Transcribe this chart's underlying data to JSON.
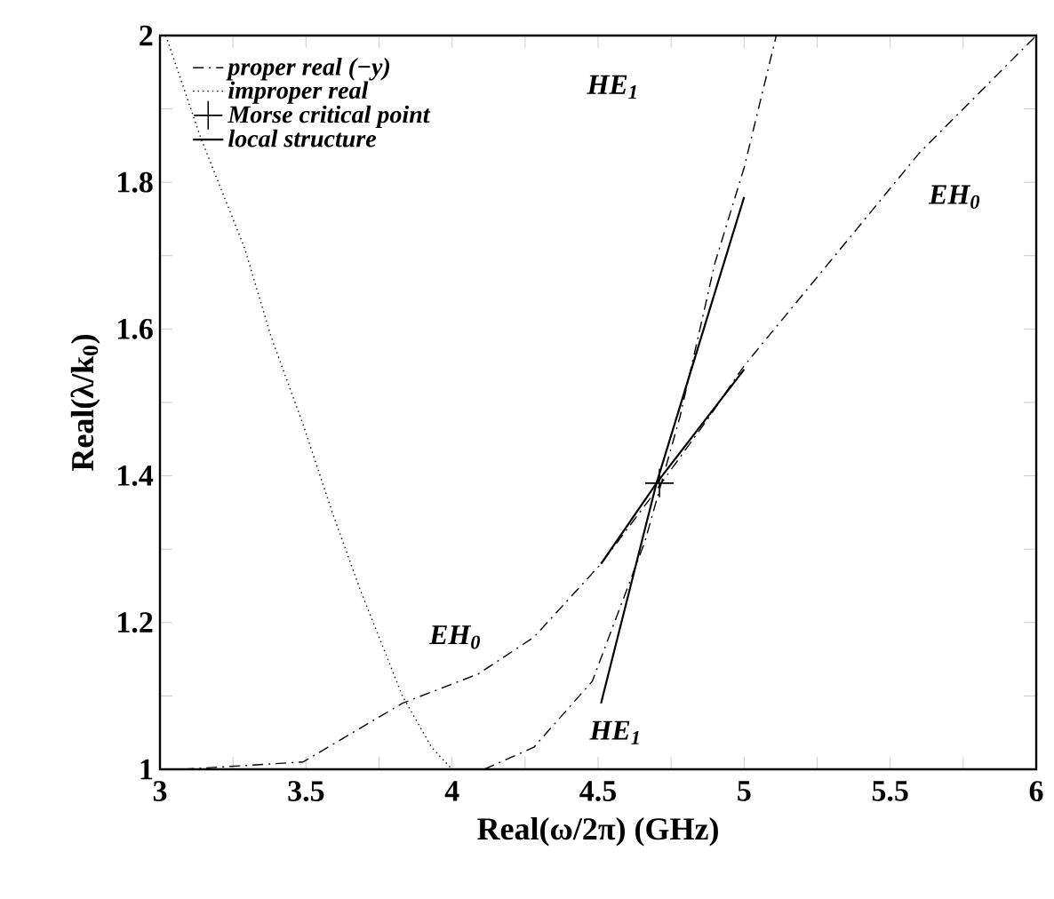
{
  "chart_data": {
    "type": "line",
    "xlabel": "Real(ω/2π) (GHz)",
    "ylabel": "Real(λ/k$_{0}$)",
    "xlim": [
      3,
      6
    ],
    "ylim": [
      1,
      2
    ],
    "xticks": [
      3,
      {
        "value": 3.25,
        "label": null
      },
      3.5,
      {
        "value": 3.75,
        "label": null
      },
      4,
      {
        "value": 4.25,
        "label": null
      },
      4.5,
      {
        "value": 4.75,
        "label": null
      },
      5,
      {
        "value": 5.25,
        "label": null
      },
      5.5,
      {
        "value": 5.75,
        "label": null
      },
      6
    ],
    "yticks": [
      1,
      {
        "value": 1.1,
        "label": null
      },
      1.2,
      {
        "value": 1.3,
        "label": null
      },
      1.4,
      {
        "value": 1.5,
        "label": null
      },
      1.6,
      {
        "value": 1.7,
        "label": null
      },
      1.8,
      {
        "value": 1.9,
        "label": null
      },
      2
    ],
    "legend": "top left",
    "series": [
      {
        "name": "proper real (−y)",
        "color": "#000000",
        "line_style": "dashdot",
        "x": [
          3.08,
          3.49,
          3.83,
          4.09,
          4.28,
          4.51,
          4.68,
          4.88,
          5.0,
          5.29,
          5.6,
          6.0
        ],
        "values": [
          1.0,
          1.01,
          1.09,
          1.13,
          1.18,
          1.28,
          1.37,
          1.48,
          1.55,
          1.69,
          1.84,
          2.0
        ]
      },
      {
        "name": "improper real",
        "color": "#000000",
        "line_style": "dotted",
        "x": [
          3.02,
          3.14,
          3.29,
          3.38,
          3.49,
          3.59,
          3.69,
          3.83,
          3.93,
          4.0
        ],
        "values": [
          2.0,
          1.86,
          1.71,
          1.59,
          1.47,
          1.35,
          1.24,
          1.1,
          1.03,
          1.0
        ]
      },
      {
        "name": "Morse critical point",
        "type": "scatter",
        "marker": "cross",
        "color": "#000000",
        "x": [
          4.71
        ],
        "values": [
          1.39
        ]
      },
      {
        "name": "local structure",
        "color": "#000000",
        "line_style": "solid",
        "x": [
          4.51,
          4.7,
          5.0
        ],
        "values": [
          1.09,
          1.39,
          1.78
        ]
      },
      {
        "color": "#000000",
        "line_style": "dashdot",
        "x": [
          4.11,
          4.28,
          4.48,
          4.66,
          4.78,
          4.9,
          5.0,
          5.11
        ],
        "values": [
          1.0,
          1.03,
          1.12,
          1.31,
          1.48,
          1.69,
          1.82,
          2.0
        ]
      },
      {
        "color": "#000000",
        "line_style": "solid",
        "x": [
          4.51,
          4.7,
          5.0
        ],
        "values": [
          1.28,
          1.39,
          1.545
        ]
      }
    ],
    "annotations": [
      "HE$_{1}$",
      "EH$_{0}$",
      "HE$_{1}$",
      "EH$_{0}$"
    ]
  }
}
